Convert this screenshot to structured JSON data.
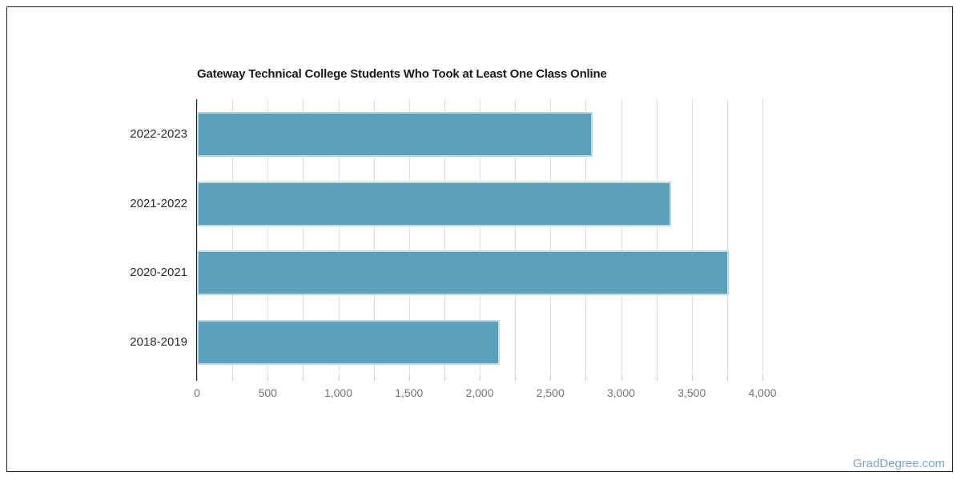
{
  "chart_data": {
    "type": "bar",
    "orientation": "horizontal",
    "title": "Gateway Technical College Students Who Took at Least One Class Online",
    "categories": [
      "2022-2023",
      "2021-2022",
      "2020-2021",
      "2018-2019"
    ],
    "values": [
      2800,
      3355,
      3760,
      2140
    ],
    "xlabel": "",
    "ylabel": "",
    "xlim": [
      0,
      4000
    ],
    "x_tick_labels": [
      "0",
      "500",
      "1,000",
      "1,500",
      "2,000",
      "2,500",
      "3,000",
      "3,500",
      "4,000"
    ],
    "x_label_step": 500,
    "x_grid_step": 250,
    "grid": true,
    "legend": false,
    "colors": {
      "bar_fill": "#5aa0ba",
      "bar_edge": "#bcdae5",
      "axis_line": "#222222",
      "gridline": "#dedede",
      "tick": "#c9c9c9",
      "x_tick_label": "#757575",
      "category_label": "#2b2b2b",
      "title": "#1a1a1a"
    }
  },
  "watermark": {
    "label": "GradDegree.com",
    "color": "#76a9c8"
  }
}
